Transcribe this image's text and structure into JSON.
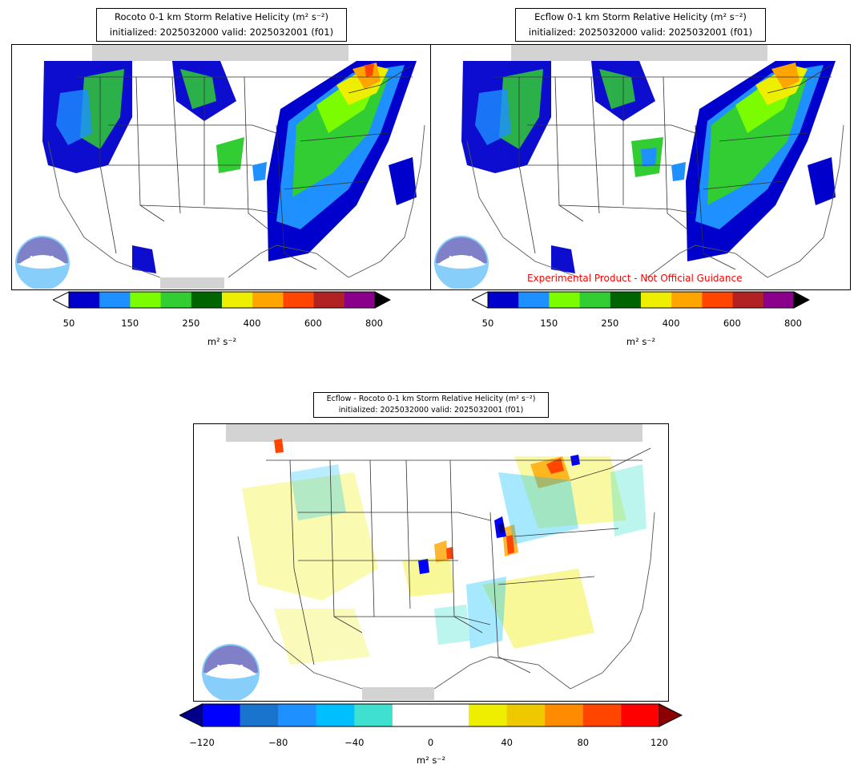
{
  "panels": [
    {
      "id": "rocoto",
      "title_line1": "Rocoto 0-1 km Storm Relative Helicity (m² s⁻²)",
      "title_line2": "initialized: 2025032000 valid: 2025032001 (f01)"
    },
    {
      "id": "ecflow",
      "title_line1": "Ecflow 0-1 km Storm Relative Helicity (m² s⁻²)",
      "title_line2": "initialized: 2025032000 valid: 2025032001 (f01)"
    },
    {
      "id": "diff",
      "title_line1": "Ecflow - Rocoto 0-1 km Storm Relative Helicity (m² s⁻²)",
      "title_line2": "initialized: 2025032000 valid: 2025032001 (f01)"
    }
  ],
  "watermark": "Experimental Product - Not Official Guidance",
  "logo_text": "NOAA",
  "colorbars": {
    "helicity": {
      "ticks": [
        "50",
        "150",
        "250",
        "400",
        "600",
        "800"
      ],
      "unit": "m² s⁻²",
      "colors": [
        "#0000cd",
        "#1e90ff",
        "#7cfc00",
        "#32cd32",
        "#006400",
        "#eeee00",
        "#ffa500",
        "#ff4500",
        "#b22222",
        "#8b008b"
      ]
    },
    "difference": {
      "ticks": [
        "−120",
        "−80",
        "−40",
        "0",
        "40",
        "80",
        "120"
      ],
      "unit": "m² s⁻²",
      "colors": [
        "#0000ff",
        "#1874cd",
        "#1e90ff",
        "#00bfff",
        "#40e0d0",
        "#ffffff",
        "#ffffff",
        "#eeee00",
        "#eec900",
        "#ff8c00",
        "#ff4500",
        "#ff0000"
      ],
      "under_color": "#00008b",
      "over_color": "#8b0000"
    }
  }
}
